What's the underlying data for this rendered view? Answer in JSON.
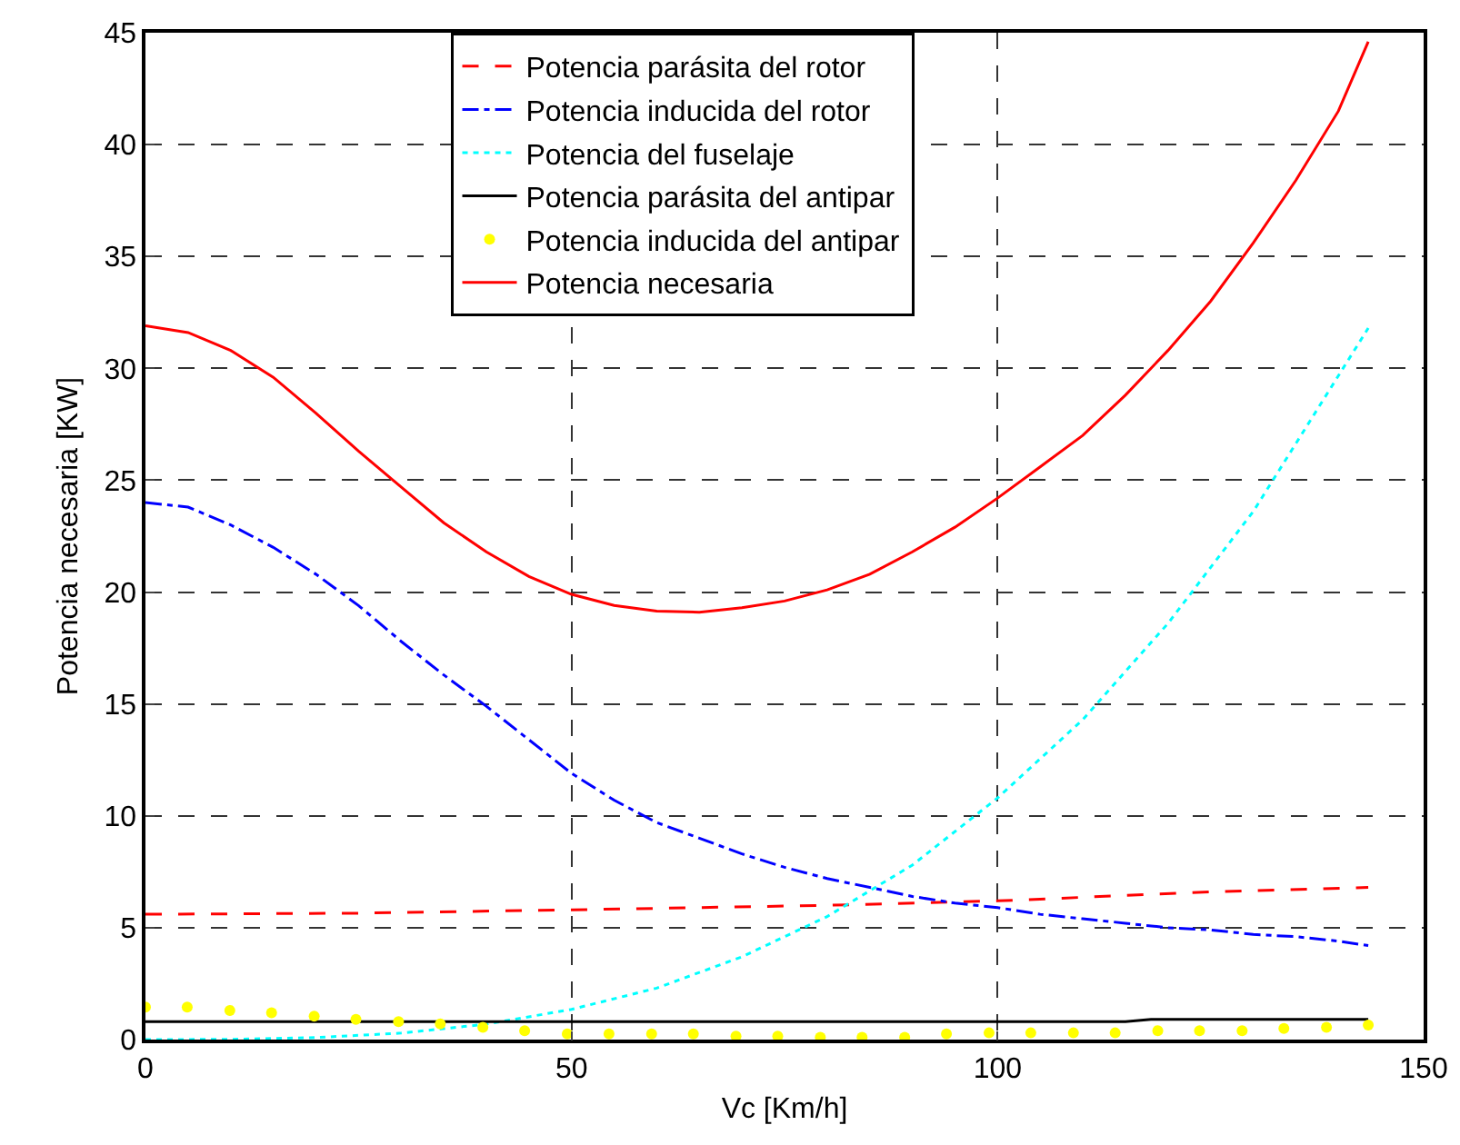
{
  "chart_data": {
    "type": "line",
    "xlabel": "Vc [Km/h]",
    "ylabel": "Potencia necesaria [KW]",
    "xlim": [
      0,
      150
    ],
    "xticks": [
      0,
      50,
      100,
      150
    ],
    "ylim": [
      0,
      45
    ],
    "yticks": [
      0,
      5,
      10,
      15,
      20,
      25,
      30,
      35,
      40,
      45
    ],
    "grid": true,
    "legend": "top",
    "series": [
      {
        "name": "Potencia parásita del rotor",
        "color": "#ff0000",
        "line_style": "dashed",
        "x": [
          0,
          25,
          50,
          80,
          100,
          125,
          143.5
        ],
        "values": [
          5.6,
          5.65,
          5.8,
          6.0,
          6.2,
          6.6,
          6.8
        ]
      },
      {
        "name": "Potencia inducida del rotor",
        "color": "#0000ff",
        "line_style": "dashdot",
        "x": [
          0,
          5,
          10,
          15,
          20,
          25,
          30,
          35,
          40,
          45,
          50,
          55,
          60,
          65,
          70,
          75,
          80,
          85,
          90,
          95,
          100,
          105,
          110,
          115,
          120,
          125,
          130,
          135,
          140,
          143.5
        ],
        "values": [
          24,
          23.8,
          23.0,
          22.0,
          20.8,
          19.4,
          17.8,
          16.3,
          14.9,
          13.4,
          11.9,
          10.7,
          9.7,
          9.0,
          8.3,
          7.7,
          7.2,
          6.8,
          6.4,
          6.1,
          5.9,
          5.6,
          5.4,
          5.2,
          5.0,
          4.9,
          4.7,
          4.6,
          4.4,
          4.2
        ]
      },
      {
        "name": "Potencia del fuselaje",
        "color": "#00ffff",
        "line_style": "dotted",
        "x": [
          0,
          10,
          20,
          30,
          40,
          50,
          60,
          70,
          80,
          90,
          100,
          110,
          120,
          130,
          143.5
        ],
        "values": [
          0,
          0.01,
          0.09,
          0.29,
          0.69,
          1.35,
          2.3,
          3.7,
          5.5,
          7.8,
          10.8,
          14.3,
          18.6,
          23.6,
          31.8
        ]
      },
      {
        "name": "Potencia parásita del antipar",
        "color": "#000000",
        "line_style": "solid",
        "x": [
          0,
          115,
          118,
          143.5
        ],
        "values": [
          0.8,
          0.8,
          0.9,
          0.9
        ]
      },
      {
        "name": "Potencia inducida del antipar",
        "color": "#ffff00",
        "type": "scatter",
        "marker": "circle",
        "x": [
          0,
          4.9,
          9.9,
          14.8,
          19.8,
          24.7,
          29.7,
          34.6,
          39.6,
          44.5,
          49.5,
          54.4,
          59.4,
          64.3,
          69.3,
          74.2,
          79.2,
          84.1,
          89.1,
          94,
          99,
          103.9,
          108.9,
          113.8,
          118.8,
          123.7,
          128.7,
          133.6,
          138.6,
          143.5
        ],
        "values": [
          1.45,
          1.45,
          1.3,
          1.2,
          1.05,
          0.9,
          0.8,
          0.7,
          0.55,
          0.4,
          0.25,
          0.25,
          0.25,
          0.25,
          0.15,
          0.15,
          0.1,
          0.1,
          0.1,
          0.25,
          0.3,
          0.3,
          0.3,
          0.3,
          0.4,
          0.4,
          0.4,
          0.5,
          0.55,
          0.65
        ]
      },
      {
        "name": "Potencia necesaria",
        "color": "#ff0000",
        "line_style": "solid",
        "x": [
          0,
          5,
          10,
          15,
          20,
          25,
          30,
          35,
          40,
          45,
          50,
          55,
          60,
          65,
          70,
          75,
          80,
          85,
          90,
          95,
          100,
          105,
          110,
          115,
          120,
          125,
          130,
          135,
          140,
          143.5
        ],
        "values": [
          31.9,
          31.6,
          30.8,
          29.6,
          28.0,
          26.3,
          24.7,
          23.1,
          21.8,
          20.7,
          19.9,
          19.4,
          19.15,
          19.1,
          19.3,
          19.6,
          20.1,
          20.8,
          21.8,
          22.9,
          24.2,
          25.6,
          27.0,
          28.8,
          30.8,
          33.0,
          35.6,
          38.4,
          41.5,
          44.6
        ]
      }
    ]
  }
}
